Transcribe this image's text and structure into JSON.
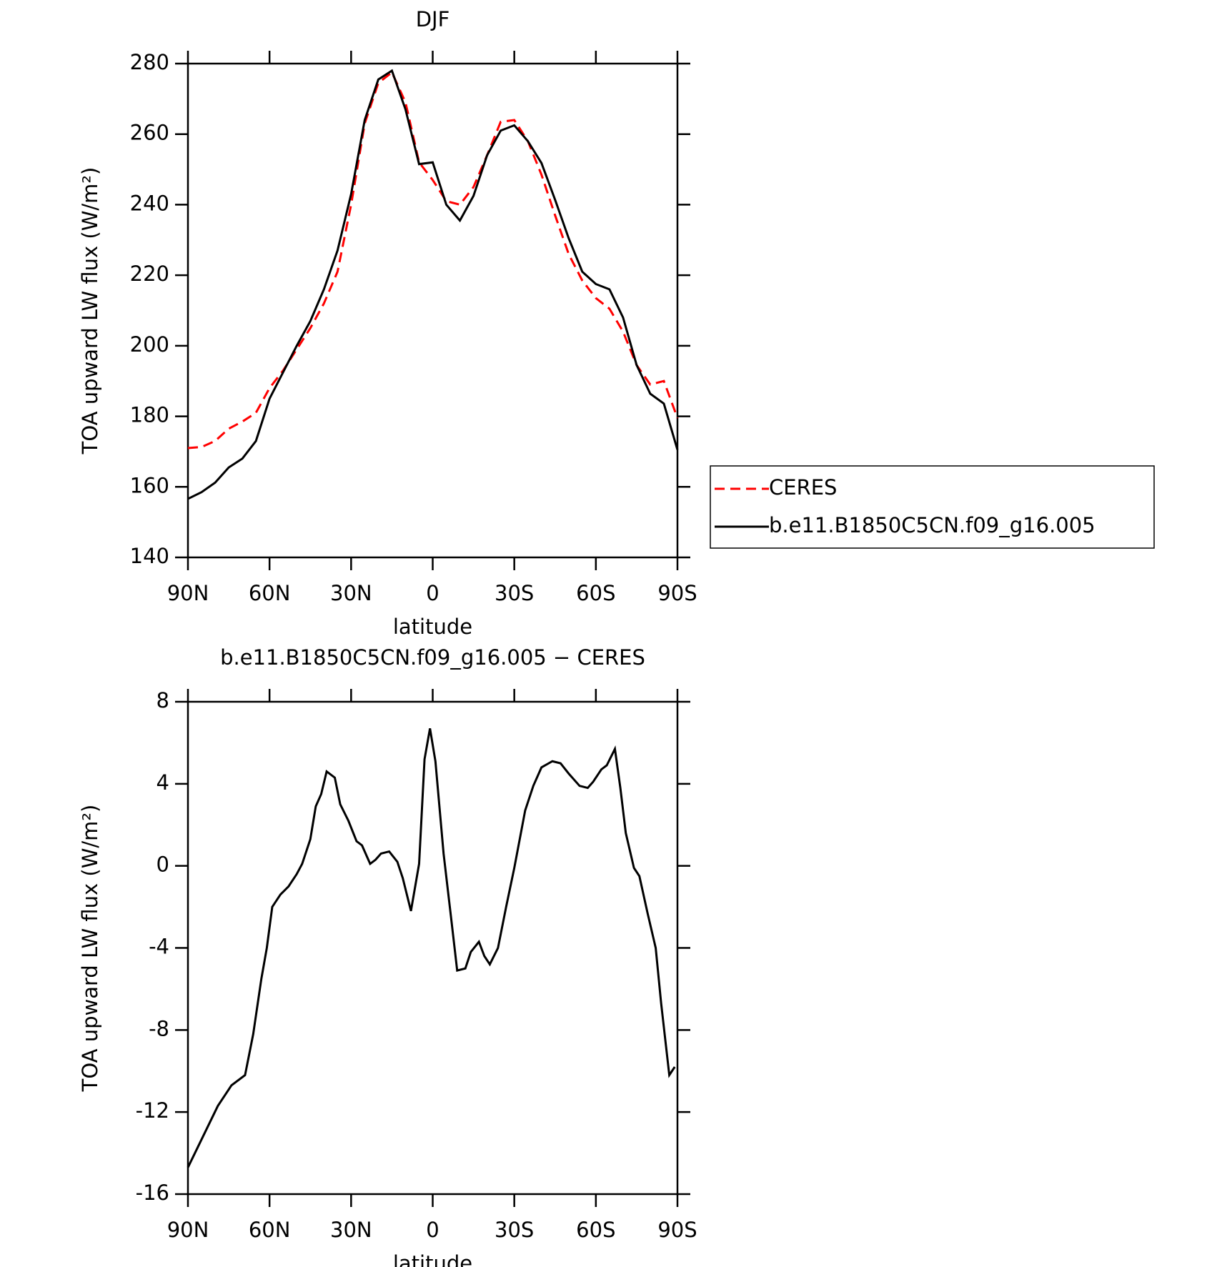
{
  "chart_data": [
    {
      "type": "line",
      "title": "DJF",
      "x_label": "latitude",
      "y_label": "TOA upward LW flux (W/m²)",
      "x": [
        90,
        85,
        80,
        75,
        70,
        65,
        60,
        55,
        50,
        45,
        40,
        35,
        30,
        25,
        20,
        15,
        10,
        5,
        0,
        -5,
        -10,
        -15,
        -20,
        -25,
        -30,
        -35,
        -40,
        -45,
        -50,
        -55,
        -60,
        -65,
        -70,
        -75,
        -80,
        -85,
        -90
      ],
      "series": [
        {
          "name": "CERES",
          "color": "#ff0000",
          "dash": true,
          "values": [
            171,
            171.3,
            173,
            176.5,
            178.5,
            181,
            188,
            193,
            199,
            205,
            212,
            221,
            240,
            263,
            274.5,
            277.5,
            269,
            252,
            247,
            241,
            240,
            245,
            254,
            263.5,
            264,
            258,
            248.5,
            237,
            226,
            218.5,
            213.5,
            210.5,
            204,
            194.5,
            189,
            190,
            179.5
          ]
        },
        {
          "name": "b.e11.B1850C5CN.f09_g16.005",
          "color": "#000000",
          "dash": false,
          "values": [
            156.6,
            158.5,
            161.2,
            165.5,
            168,
            173,
            185,
            192.5,
            200,
            207,
            216,
            227,
            243,
            264,
            275.5,
            278,
            267,
            251.5,
            252,
            240,
            235.5,
            242.5,
            254,
            261,
            262.5,
            258,
            251.8,
            241.4,
            230.5,
            221,
            217.5,
            216,
            208,
            194.5,
            186.4,
            183.6,
            170.5
          ]
        }
      ],
      "xlim": [
        90,
        -90
      ],
      "xticks": [
        {
          "value": 90,
          "label": "90N"
        },
        {
          "value": 60,
          "label": "60N"
        },
        {
          "value": 30,
          "label": "30N"
        },
        0,
        {
          "value": -30,
          "label": "30S"
        },
        {
          "value": -60,
          "label": "60S"
        },
        {
          "value": -90,
          "label": "90S"
        }
      ],
      "ylim": [
        140,
        280
      ],
      "yticks": [
        140,
        160,
        180,
        200,
        220,
        240,
        260,
        280
      ],
      "legend": "outside-right"
    },
    {
      "type": "line",
      "title": "b.e11.B1850C5CN.f09_g16.005 − CERES",
      "x_label": "latitude",
      "y_label": "TOA upward LW flux (W/m²)",
      "x": [
        90,
        79,
        74,
        69,
        66,
        63,
        61,
        59,
        56,
        53,
        50,
        48,
        45,
        43,
        41,
        39,
        36,
        34,
        31,
        28,
        26,
        23,
        21,
        19,
        16,
        13,
        11,
        8,
        5,
        3,
        1,
        -1,
        -4,
        -7,
        -9,
        -12,
        -14,
        -17,
        -19,
        -21,
        -24,
        -27,
        -30,
        -34,
        -37,
        -40,
        -44,
        -47,
        -50,
        -54,
        -57,
        -59,
        -62,
        -64,
        -67,
        -69,
        -71,
        -74,
        -76,
        -79,
        -82,
        -84,
        -87,
        -89
      ],
      "series": [
        {
          "name": "b.e11.B1850C5CN.f09_g16.005 − CERES",
          "color": "#000000",
          "dash": false,
          "values": [
            -14.7,
            -11.7,
            -10.7,
            -10.2,
            -8.2,
            -5.5,
            -4,
            -2,
            -1.4,
            -1,
            -0.4,
            0.1,
            1.3,
            2.9,
            3.5,
            4.6,
            4.3,
            3,
            2.2,
            1.2,
            1,
            0.1,
            0.3,
            0.6,
            0.7,
            0.2,
            -0.6,
            -2.2,
            0.1,
            5.2,
            6.7,
            5.1,
            0.6,
            -2.8,
            -5.1,
            -5,
            -4.2,
            -3.7,
            -4.4,
            -4.8,
            -4,
            -2,
            -0.1,
            2.7,
            3.9,
            4.8,
            5.1,
            5,
            4.5,
            3.9,
            3.8,
            4.1,
            4.7,
            4.9,
            5.7,
            3.8,
            1.6,
            -0.1,
            -0.5,
            -2.3,
            -4,
            -6.7,
            -10.2,
            -9.8
          ]
        }
      ],
      "xlim": [
        90,
        -90
      ],
      "xticks": [
        {
          "value": 90,
          "label": "90N"
        },
        {
          "value": 60,
          "label": "60N"
        },
        {
          "value": 30,
          "label": "30N"
        },
        0,
        {
          "value": -30,
          "label": "30S"
        },
        {
          "value": -60,
          "label": "60S"
        },
        {
          "value": -90,
          "label": "90S"
        }
      ],
      "ylim": [
        -16,
        8
      ],
      "yticks": [
        -16,
        -12,
        -8,
        -4,
        0,
        4,
        8
      ]
    }
  ]
}
